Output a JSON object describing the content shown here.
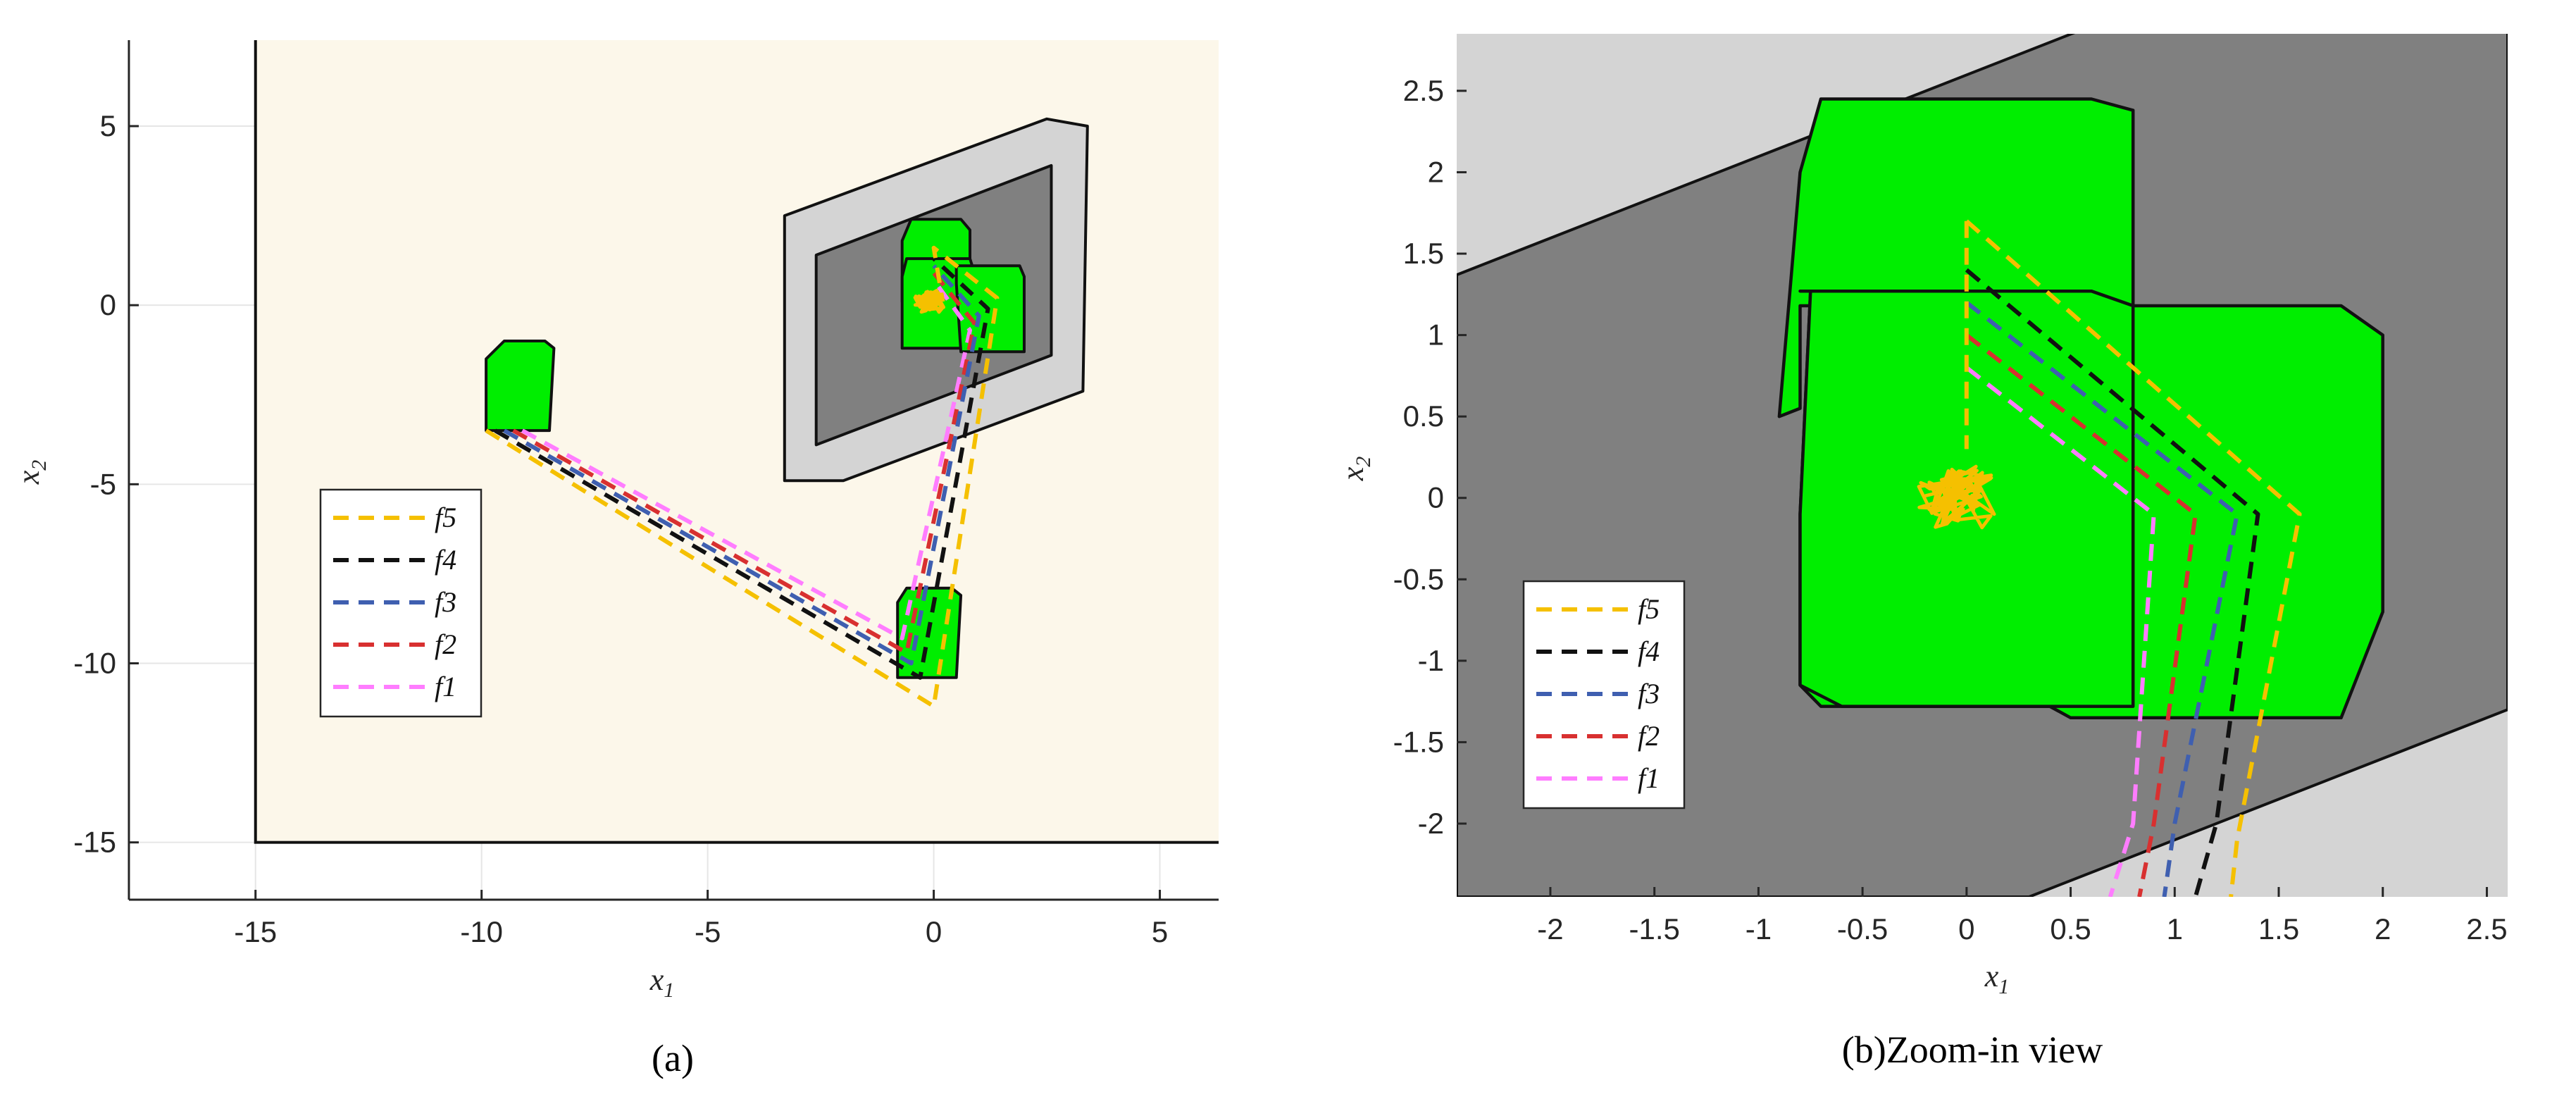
{
  "figure": {
    "captions": [
      "(a)",
      "(b)Zoom-in view"
    ]
  },
  "colors": {
    "outer_domain": "#fcf7ea",
    "shell_region": "#d4d4d4",
    "target_region": "#808080",
    "tube": "#00ee00",
    "f5": "#f5c000",
    "f4": "#111111",
    "f3": "#3f5fb0",
    "f2": "#d83030",
    "f1": "#ff7dff"
  },
  "chart_data": [
    {
      "type": "line",
      "panel": "(a)",
      "xlabel": "x",
      "xlabel_sub": "1",
      "ylabel": "x",
      "ylabel_sub": "2",
      "xlim": [
        -17.8,
        6.3
      ],
      "ylim": [
        -16.6,
        7.4
      ],
      "xticks": [
        -15,
        -10,
        -5,
        0,
        5
      ],
      "yticks": [
        -15,
        -10,
        -5,
        0,
        5
      ],
      "grid": true,
      "legend_position": "lower-left",
      "legend": [
        "f5",
        "f4",
        "f3",
        "f2",
        "f1"
      ],
      "domain_box": {
        "x": [
          -15,
          7.5
        ],
        "y": [
          -15,
          8
        ]
      },
      "shell_polygon": [
        [
          -3.3,
          2.5
        ],
        [
          2.5,
          5.2
        ],
        [
          3.4,
          5.0
        ],
        [
          3.3,
          -2.4
        ],
        [
          -2.0,
          -4.9
        ],
        [
          -3.3,
          -4.9
        ],
        [
          -3.3,
          1.0
        ]
      ],
      "target_polygon": [
        [
          -2.6,
          1.4
        ],
        [
          2.6,
          3.9
        ],
        [
          2.6,
          -1.4
        ],
        [
          -2.6,
          -3.9
        ]
      ],
      "tubes": [
        [
          [
            -9.5,
            -1.0
          ],
          [
            -8.6,
            -1.0
          ],
          [
            -8.4,
            -1.2
          ],
          [
            -8.5,
            -3.5
          ],
          [
            -9.9,
            -3.5
          ],
          [
            -9.9,
            -1.5
          ]
        ],
        [
          [
            -0.6,
            -7.9
          ],
          [
            0.4,
            -7.9
          ],
          [
            0.6,
            -8.1
          ],
          [
            0.5,
            -10.4
          ],
          [
            -0.8,
            -10.4
          ],
          [
            -0.8,
            -8.3
          ]
        ],
        [
          [
            -0.5,
            2.4
          ],
          [
            0.6,
            2.4
          ],
          [
            0.8,
            2.1
          ],
          [
            0.8,
            0.1
          ],
          [
            -0.7,
            0.1
          ],
          [
            -0.7,
            1.8
          ]
        ],
        [
          [
            -0.6,
            1.3
          ],
          [
            0.8,
            1.3
          ],
          [
            0.9,
            0.9
          ],
          [
            0.9,
            -1.2
          ],
          [
            -0.7,
            -1.2
          ],
          [
            -0.7,
            0.8
          ]
        ],
        [
          [
            0.5,
            1.1
          ],
          [
            1.9,
            1.1
          ],
          [
            2.0,
            0.8
          ],
          [
            2.0,
            -1.3
          ],
          [
            0.6,
            -1.3
          ],
          [
            0.5,
            0.6
          ]
        ]
      ],
      "series": [
        {
          "name": "f5",
          "x": [
            -9.9,
            0.0,
            1.4,
            0.0,
            0.2
          ],
          "y": [
            -3.5,
            -11.2,
            0.2,
            1.6,
            0.1
          ]
        },
        {
          "name": "f4",
          "x": [
            -9.7,
            -0.3,
            1.2,
            0.0
          ],
          "y": [
            -3.5,
            -10.4,
            -0.1,
            1.3
          ]
        },
        {
          "name": "f3",
          "x": [
            -9.5,
            -0.5,
            1.0,
            0.0
          ],
          "y": [
            -3.5,
            -10.0,
            -0.3,
            1.1
          ]
        },
        {
          "name": "f2",
          "x": [
            -9.3,
            -0.6,
            0.9,
            0.0
          ],
          "y": [
            -3.5,
            -9.7,
            -0.5,
            0.9
          ]
        },
        {
          "name": "f1",
          "x": [
            -9.1,
            -0.7,
            0.8,
            0.0
          ],
          "y": [
            -3.5,
            -9.3,
            -0.7,
            0.7
          ]
        }
      ],
      "convergence_cluster": {
        "center": [
          -0.1,
          0.1
        ],
        "radius": [
          0.35,
          0.45
        ]
      }
    },
    {
      "type": "line",
      "panel": "(b)",
      "xlabel": "x",
      "xlabel_sub": "1",
      "ylabel": "x",
      "ylabel_sub": "2",
      "xlim": [
        -2.45,
        2.6
      ],
      "ylim": [
        -2.45,
        2.85
      ],
      "xticks": [
        -2,
        -1.5,
        -1,
        -0.5,
        0,
        0.5,
        1,
        1.5,
        2,
        2.5
      ],
      "yticks": [
        -2,
        -1.5,
        -1,
        -0.5,
        0,
        0.5,
        1,
        1.5,
        2,
        2.5
      ],
      "grid": false,
      "legend_position": "lower-left",
      "legend": [
        "f5",
        "f4",
        "f3",
        "f2",
        "f1"
      ],
      "target_polygon": [
        [
          -2.45,
          1.37
        ],
        [
          2.6,
          3.9
        ],
        [
          2.6,
          -1.3
        ],
        [
          0.3,
          -2.45
        ],
        [
          -2.45,
          -2.45
        ]
      ],
      "tubes": [
        [
          [
            -0.7,
            2.45
          ],
          [
            0.6,
            2.45
          ],
          [
            0.8,
            2.38
          ],
          [
            0.8,
            1.18
          ],
          [
            -0.8,
            1.18
          ],
          [
            -0.8,
            0.55
          ],
          [
            -0.9,
            0.5
          ],
          [
            -0.8,
            2.0
          ]
        ],
        [
          [
            -0.75,
            1.27
          ],
          [
            0.6,
            1.27
          ],
          [
            0.8,
            1.18
          ],
          [
            1.8,
            1.18
          ],
          [
            2.0,
            1.0
          ],
          [
            2.0,
            -0.7
          ],
          [
            1.8,
            -1.35
          ],
          [
            0.5,
            -1.35
          ],
          [
            0.4,
            -1.28
          ],
          [
            -0.7,
            -1.28
          ],
          [
            -0.8,
            -1.15
          ],
          [
            -0.8,
            -0.1
          ]
        ],
        [
          [
            -0.8,
            1.27
          ],
          [
            0.6,
            1.27
          ],
          [
            0.8,
            1.18
          ],
          [
            0.8,
            -1.28
          ],
          [
            -0.6,
            -1.28
          ],
          [
            -0.8,
            -1.15
          ],
          [
            -0.8,
            -0.1
          ],
          [
            -0.75,
            1.27
          ]
        ]
      ],
      "series": [
        {
          "name": "f5",
          "x": [
            0.0,
            1.6,
            1.3,
            1.27
          ],
          "y": [
            1.7,
            -0.1,
            -2.1,
            -2.45
          ]
        },
        {
          "name": "f4",
          "x": [
            0.0,
            1.4,
            1.2,
            1.1
          ],
          "y": [
            1.4,
            -0.1,
            -2.0,
            -2.45
          ]
        },
        {
          "name": "f3",
          "x": [
            0.0,
            1.3,
            1.0,
            0.95
          ],
          "y": [
            1.2,
            -0.1,
            -2.0,
            -2.45
          ]
        },
        {
          "name": "f2",
          "x": [
            0.0,
            1.1,
            0.9,
            0.83
          ],
          "y": [
            1.0,
            -0.1,
            -2.0,
            -2.45
          ]
        },
        {
          "name": "f1",
          "x": [
            0.0,
            0.9,
            0.8,
            0.69
          ],
          "y": [
            0.8,
            -0.1,
            -2.0,
            -2.45
          ]
        }
      ],
      "f5_lead_in": {
        "x": [
          0.0,
          0.0
        ],
        "y": [
          1.7,
          0.3
        ]
      },
      "convergence_cluster": {
        "center": [
          -0.05,
          0.0
        ],
        "radius": [
          0.2,
          0.28
        ]
      }
    }
  ]
}
